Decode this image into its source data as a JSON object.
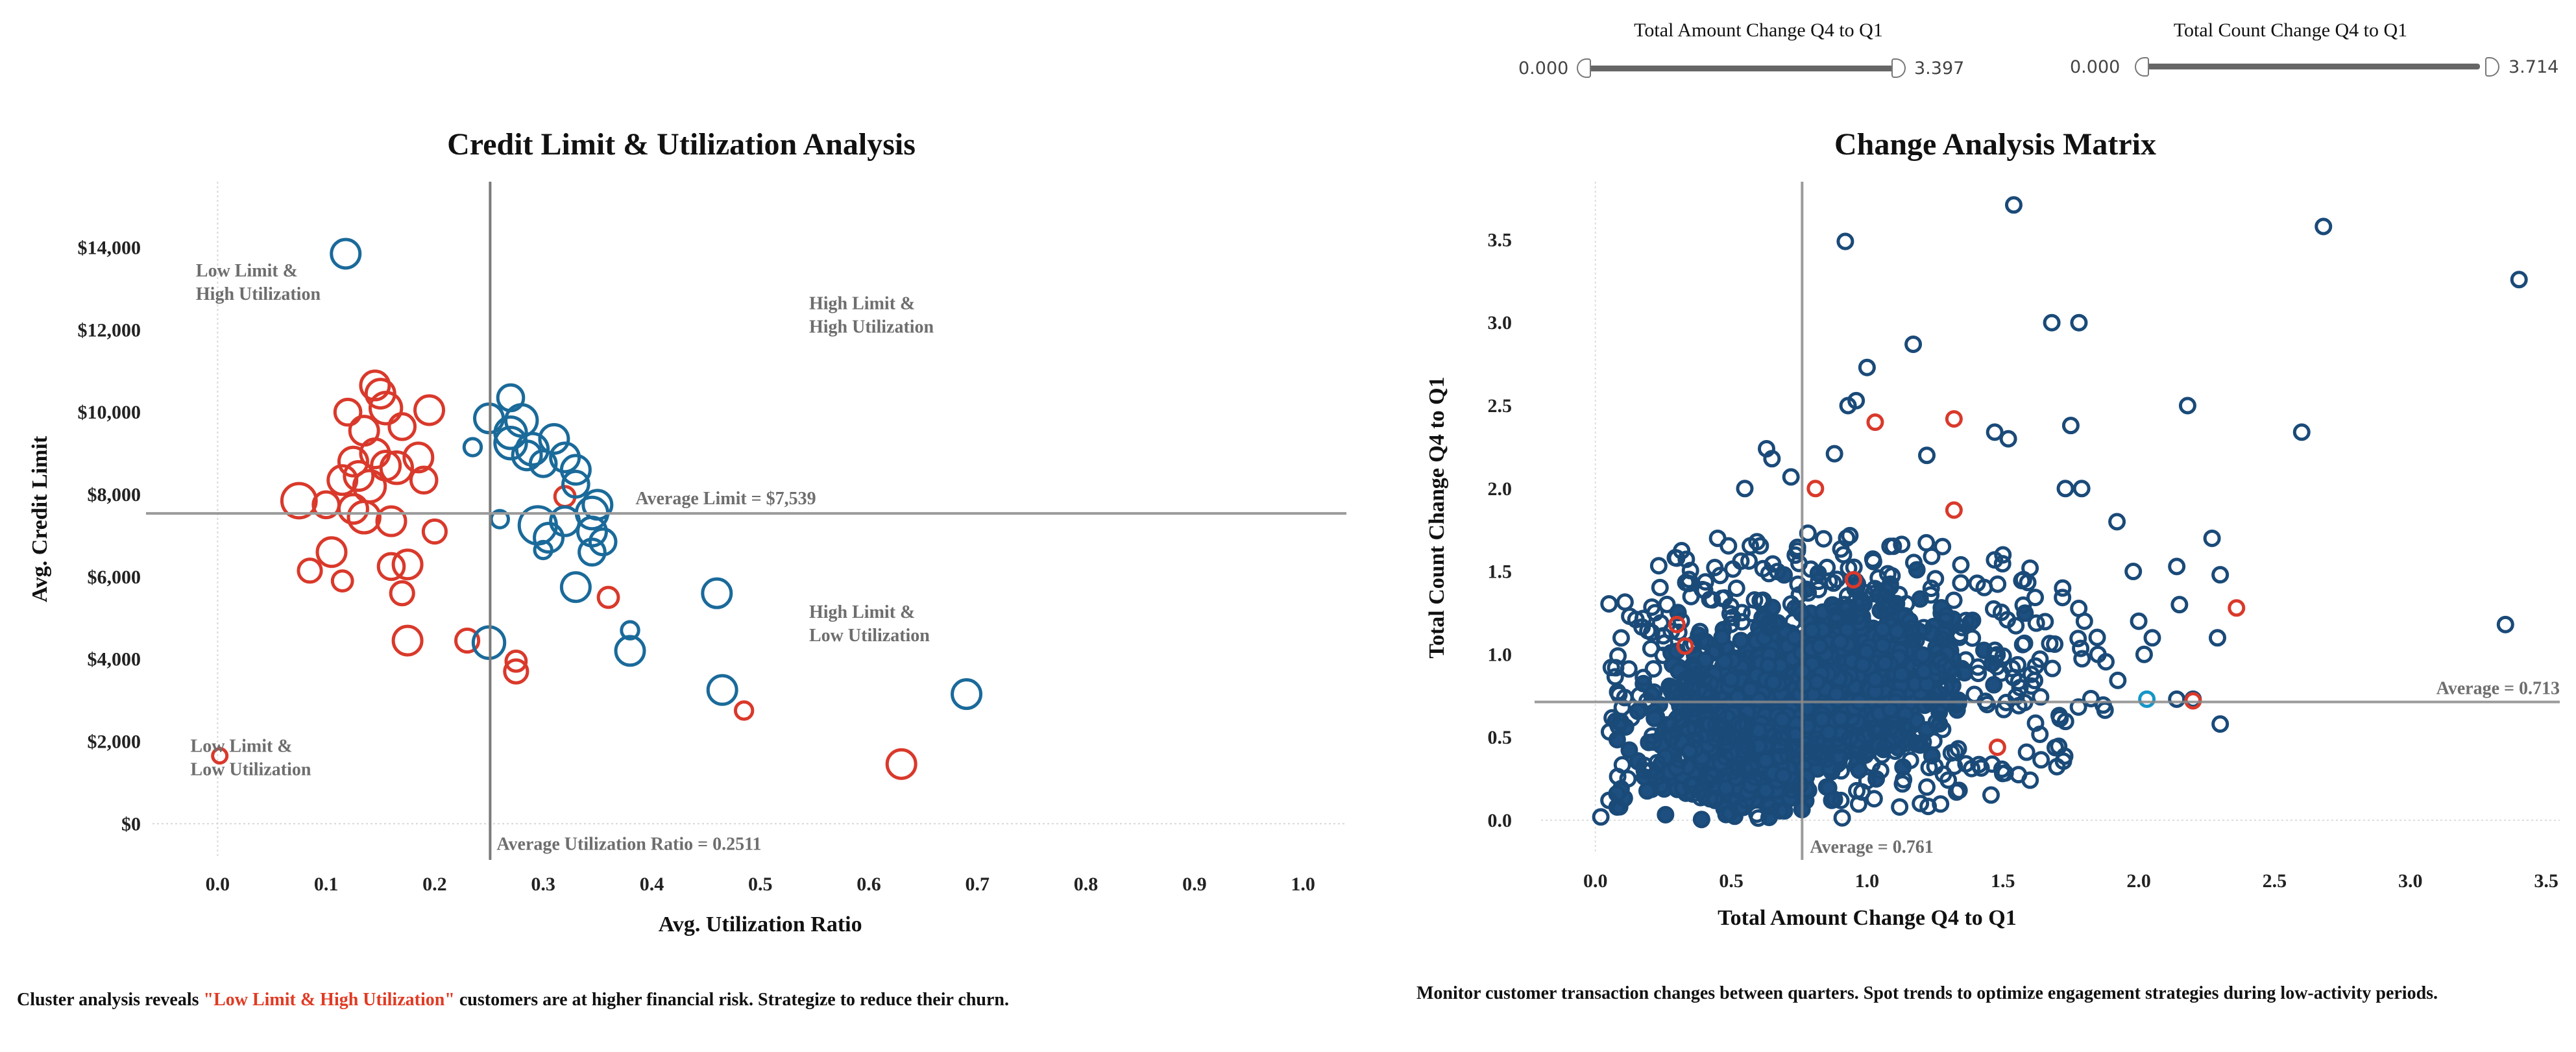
{
  "colors": {
    "blue": "#1a6a9a",
    "red": "#d9392b",
    "navy": "#1a4a78",
    "cyan": "#1596c8",
    "refline": "#8c8c8c"
  },
  "filters": [
    {
      "title": "Total Amount Change Q4 to Q1",
      "min_label": "0.000",
      "max_label": "3.397",
      "min": 0.0,
      "max": 3.397
    },
    {
      "title": "Total Count Change Q4 to Q1",
      "min_label": "0.000",
      "max_label": "3.714",
      "min": 0.0,
      "max": 3.714
    }
  ],
  "left_chart": {
    "title": "Credit Limit & Utilization Analysis",
    "caption_prefix": "Cluster analysis reveals ",
    "caption_highlight": "\"Low Limit & High Utilization\"",
    "caption_suffix": " customers are at higher financial risk. Strategize to reduce their churn."
  },
  "right_chart": {
    "title": "Change Analysis Matrix",
    "caption": "Monitor customer transaction changes between quarters. Spot trends to optimize engagement strategies during low-activity periods."
  },
  "chart_data": [
    {
      "type": "scatter",
      "title": "Credit Limit & Utilization Analysis",
      "xlabel": "Avg. Utilization Ratio",
      "ylabel": "Avg. Credit Limit",
      "xlim": [
        -0.06,
        1.04
      ],
      "ylim": [
        -800,
        15600
      ],
      "xticks": [
        0.0,
        0.1,
        0.2,
        0.3,
        0.4,
        0.5,
        0.6,
        0.7,
        0.8,
        0.9,
        1.0
      ],
      "xtick_labels": [
        "0.0",
        "0.1",
        "0.2",
        "0.3",
        "0.4",
        "0.5",
        "0.6",
        "0.7",
        "0.8",
        "0.9",
        "1.0"
      ],
      "yticks": [
        0,
        2000,
        4000,
        6000,
        8000,
        10000,
        12000,
        14000
      ],
      "ytick_labels": [
        "$0",
        "$2,000",
        "$4,000",
        "$6,000",
        "$8,000",
        "$10,000",
        "$12,000",
        "$14,000"
      ],
      "ref_lines": {
        "x": 0.2511,
        "y": 7539,
        "x_label": "Average Utilization Ratio = 0.2511",
        "y_label": "Average Limit = $7,539"
      },
      "quadrant_labels": [
        {
          "lines": [
            "Low Limit &",
            "High Utilization"
          ],
          "x": -0.02,
          "y": 13300
        },
        {
          "lines": [
            "High Limit &",
            "High Utilization"
          ],
          "x": 0.545,
          "y": 12500
        },
        {
          "lines": [
            "High Limit &",
            "Low Utilization"
          ],
          "x": 0.545,
          "y": 5000
        },
        {
          "lines": [
            "Low Limit &",
            "Low Utilization"
          ],
          "x": -0.025,
          "y": 1750
        }
      ],
      "series": [
        {
          "name": "Red cluster",
          "color": "red",
          "points": [
            [
              0.145,
              10650,
              1.0
            ],
            [
              0.15,
              10450,
              1.0
            ],
            [
              0.155,
              10100,
              1.1
            ],
            [
              0.195,
              10050,
              1.0
            ],
            [
              0.12,
              10000,
              0.9
            ],
            [
              0.135,
              9550,
              1.0
            ],
            [
              0.17,
              9650,
              0.9
            ],
            [
              0.145,
              9000,
              1.0
            ],
            [
              0.185,
              8900,
              1.0
            ],
            [
              0.125,
              8800,
              1.0
            ],
            [
              0.155,
              8700,
              1.0
            ],
            [
              0.165,
              8650,
              1.1
            ],
            [
              0.13,
              8450,
              1.0
            ],
            [
              0.115,
              8350,
              1.0
            ],
            [
              0.19,
              8350,
              0.9
            ],
            [
              0.14,
              8200,
              1.1
            ],
            [
              0.075,
              7850,
              1.2
            ],
            [
              0.1,
              7750,
              0.9
            ],
            [
              0.125,
              7650,
              1.0
            ],
            [
              0.135,
              7450,
              1.1
            ],
            [
              0.16,
              7350,
              1.0
            ],
            [
              0.2,
              7100,
              0.8
            ],
            [
              0.175,
              6300,
              1.0
            ],
            [
              0.16,
              6250,
              0.9
            ],
            [
              0.105,
              6600,
              1.0
            ],
            [
              0.085,
              6150,
              0.8
            ],
            [
              0.115,
              5900,
              0.7
            ],
            [
              0.17,
              5600,
              0.8
            ],
            [
              0.175,
              4450,
              1.0
            ],
            [
              0.23,
              4450,
              0.8
            ],
            [
              0.275,
              3950,
              0.7
            ],
            [
              0.275,
              3700,
              0.8
            ],
            [
              0.32,
              7950,
              0.7
            ],
            [
              0.36,
              5500,
              0.7
            ],
            [
              0.485,
              2750,
              0.6
            ],
            [
              0.63,
              1450,
              1.0
            ],
            [
              0.002,
              1650,
              0.5
            ]
          ]
        },
        {
          "name": "Blue cluster",
          "color": "blue",
          "points": [
            [
              0.118,
              13850,
              1.0
            ],
            [
              0.27,
              10350,
              0.9
            ],
            [
              0.25,
              9850,
              1.0
            ],
            [
              0.28,
              9800,
              1.1
            ],
            [
              0.27,
              9500,
              1.1
            ],
            [
              0.27,
              9250,
              1.1
            ],
            [
              0.29,
              9100,
              1.1
            ],
            [
              0.31,
              9350,
              1.0
            ],
            [
              0.235,
              9150,
              0.6
            ],
            [
              0.285,
              8950,
              1.0
            ],
            [
              0.3,
              8750,
              0.9
            ],
            [
              0.32,
              8900,
              1.0
            ],
            [
              0.33,
              8600,
              1.0
            ],
            [
              0.33,
              8250,
              0.9
            ],
            [
              0.35,
              7750,
              1.0
            ],
            [
              0.345,
              7550,
              1.1
            ],
            [
              0.32,
              7350,
              1.0
            ],
            [
              0.345,
              7100,
              1.0
            ],
            [
              0.355,
              6850,
              0.9
            ],
            [
              0.295,
              7250,
              1.3
            ],
            [
              0.305,
              6950,
              1.0
            ],
            [
              0.26,
              7400,
              0.6
            ],
            [
              0.3,
              6650,
              0.6
            ],
            [
              0.33,
              5750,
              1.0
            ],
            [
              0.345,
              6600,
              0.9
            ],
            [
              0.38,
              4700,
              0.6
            ],
            [
              0.38,
              4200,
              1.0
            ],
            [
              0.46,
              5600,
              1.0
            ],
            [
              0.465,
              3250,
              1.0
            ],
            [
              0.25,
              4400,
              1.1
            ],
            [
              0.69,
              3150,
              1.0
            ]
          ]
        }
      ]
    },
    {
      "type": "scatter",
      "title": "Change Analysis Matrix",
      "xlabel": "Total Amount Change Q4 to Q1",
      "ylabel": "Total Count Change Q4 to Q1",
      "xlim": [
        -0.2,
        3.55
      ],
      "ylim": [
        -0.2,
        3.85
      ],
      "xticks": [
        0.0,
        0.5,
        1.0,
        1.5,
        2.0,
        2.5,
        3.0,
        3.5
      ],
      "xtick_labels": [
        "0.0",
        "0.5",
        "1.0",
        "1.5",
        "2.0",
        "2.5",
        "3.0",
        "3.5"
      ],
      "yticks": [
        0.0,
        0.5,
        1.0,
        1.5,
        2.0,
        2.5,
        3.0,
        3.5
      ],
      "ytick_labels": [
        "0.0",
        "0.5",
        "1.0",
        "1.5",
        "2.0",
        "2.5",
        "3.0",
        "3.5"
      ],
      "ref_lines": {
        "x": 0.761,
        "y": 0.713,
        "x_label": "Average = 0.761",
        "y_label": "Average = 0.713"
      },
      "outliers": [
        [
          1.54,
          3.71
        ],
        [
          2.68,
          3.58
        ],
        [
          3.4,
          3.26
        ],
        [
          0.92,
          3.49
        ],
        [
          1.68,
          3.0
        ],
        [
          1.78,
          3.0
        ],
        [
          1.17,
          2.87
        ],
        [
          1.0,
          2.73
        ],
        [
          1.75,
          2.38
        ],
        [
          2.18,
          2.5
        ],
        [
          2.6,
          2.34
        ],
        [
          1.47,
          2.34
        ],
        [
          1.52,
          2.3
        ],
        [
          0.63,
          2.24
        ],
        [
          0.65,
          2.18
        ],
        [
          0.93,
          2.5
        ],
        [
          0.88,
          2.21
        ],
        [
          0.96,
          2.53
        ],
        [
          1.22,
          2.2
        ],
        [
          0.55,
          2.0
        ],
        [
          0.72,
          2.07
        ],
        [
          1.73,
          2.0
        ],
        [
          1.79,
          2.0
        ],
        [
          1.92,
          1.8
        ],
        [
          2.27,
          1.7
        ],
        [
          1.98,
          1.5
        ],
        [
          2.14,
          1.53
        ],
        [
          2.3,
          1.48
        ],
        [
          3.35,
          1.18
        ],
        [
          2.0,
          1.2
        ],
        [
          2.05,
          1.1
        ],
        [
          2.15,
          1.3
        ],
        [
          2.29,
          1.1
        ],
        [
          2.02,
          1.0
        ],
        [
          2.3,
          0.58
        ],
        [
          2.2,
          0.73
        ],
        [
          2.14,
          0.73
        ],
        [
          1.8,
          1.2
        ],
        [
          1.85,
          1.0
        ],
        [
          1.72,
          1.4
        ],
        [
          1.6,
          1.52
        ],
        [
          1.5,
          1.6
        ],
        [
          0.35,
          1.05
        ],
        [
          0.45,
          1.7
        ],
        [
          0.28,
          0.78
        ],
        [
          0.12,
          0.25
        ],
        [
          0.08,
          0.08
        ],
        [
          0.02,
          0.02
        ],
        [
          0.05,
          0.12
        ],
        [
          0.18,
          0.3
        ],
        [
          1.18,
          0.46
        ],
        [
          1.05,
          0.3
        ],
        [
          1.22,
          0.2
        ],
        [
          1.12,
          0.08
        ],
        [
          0.87,
          0.12
        ]
      ],
      "red_points": [
        [
          0.3,
          1.18
        ],
        [
          0.33,
          1.05
        ],
        [
          0.81,
          2.0
        ],
        [
          1.03,
          2.4
        ],
        [
          1.32,
          2.42
        ],
        [
          1.32,
          1.87
        ],
        [
          2.36,
          1.28
        ],
        [
          2.2,
          0.72
        ],
        [
          0.95,
          1.45
        ],
        [
          1.48,
          0.44
        ]
      ],
      "cyan_points": [
        [
          2.03,
          0.73
        ]
      ]
    }
  ]
}
